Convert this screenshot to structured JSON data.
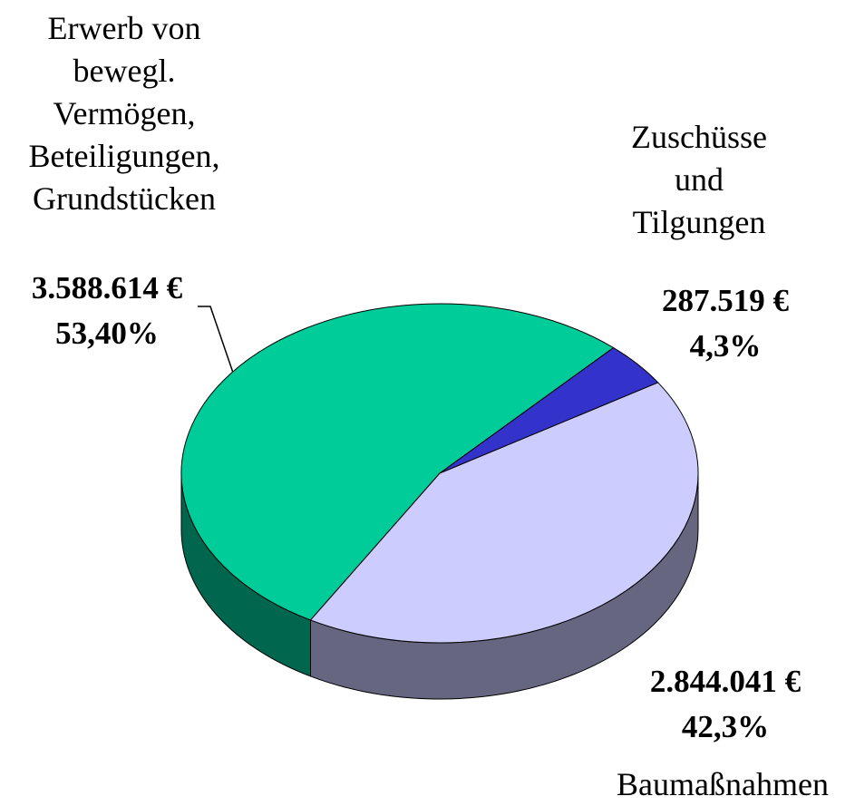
{
  "chart_data": {
    "type": "pie3d",
    "categories": [
      "Erwerb von\nbewegl.\nVermögen,\nBeteiligungen,\nGrundstücken",
      "Zuschüsse und\nTilgungen",
      "Baumaßnahmen"
    ],
    "values": [
      3588614,
      287519,
      2844041
    ],
    "value_labels": [
      "3.588.614 €",
      "287.519 €",
      "2.844.041 €"
    ],
    "shares": [
      53.4,
      4.3,
      42.3
    ],
    "share_labels": [
      "53,40%",
      "4,3%",
      "42,3%"
    ],
    "colors": [
      "#00cc99",
      "#3333cc",
      "#ccccff"
    ]
  }
}
